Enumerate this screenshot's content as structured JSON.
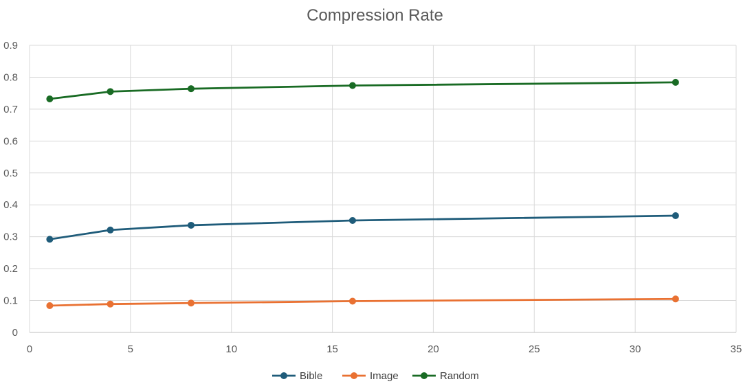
{
  "chart_data": {
    "type": "line",
    "title": "Compression Rate",
    "xlabel": "",
    "ylabel": "",
    "xlim": [
      0,
      35
    ],
    "ylim": [
      0,
      0.9
    ],
    "x_ticks": [
      0,
      5,
      10,
      15,
      20,
      25,
      30,
      35
    ],
    "y_ticks": [
      0,
      0.1,
      0.2,
      0.3,
      0.4,
      0.5,
      0.6,
      0.7,
      0.8,
      0.9
    ],
    "x_tick_labels": [
      "0",
      "5",
      "10",
      "15",
      "20",
      "25",
      "30",
      "35"
    ],
    "y_tick_labels": [
      "0",
      "0.1",
      "0.2",
      "0.3",
      "0.4",
      "0.5",
      "0.6",
      "0.7",
      "0.8",
      "0.9"
    ],
    "grid": true,
    "legend_position": "bottom",
    "x": [
      1,
      4,
      8,
      16,
      32
    ],
    "series": [
      {
        "name": "Bible",
        "color": "#1f5c7a",
        "values": [
          0.292,
          0.321,
          0.336,
          0.351,
          0.366
        ]
      },
      {
        "name": "Image",
        "color": "#e97132",
        "values": [
          0.084,
          0.089,
          0.092,
          0.098,
          0.105
        ]
      },
      {
        "name": "Random",
        "color": "#196b24",
        "values": [
          0.732,
          0.755,
          0.764,
          0.774,
          0.784
        ]
      }
    ]
  }
}
